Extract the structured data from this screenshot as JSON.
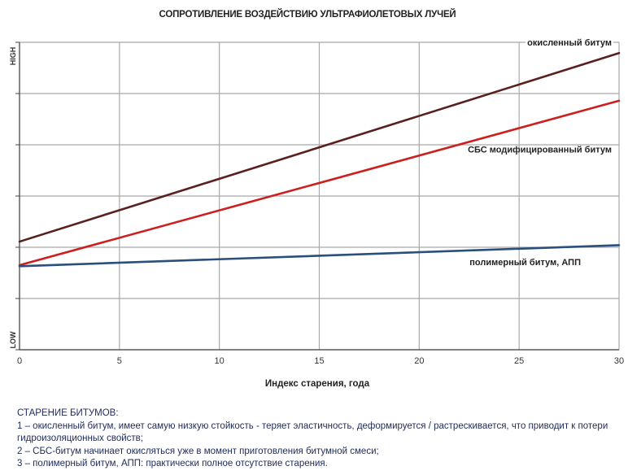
{
  "chart_data": {
    "type": "line",
    "title": "СОПРОТИВЛЕНИЕ ВОЗДЕЙСТВИЮ УЛЬТРАФИОЛЕТОВЫХ ЛУЧЕЙ",
    "xlabel": "Индекс старения, года",
    "ylabel": "",
    "y_high_label": "HIGH",
    "y_low_label": "LOW",
    "xlim": [
      0,
      30
    ],
    "ylim": [
      0,
      6
    ],
    "xticks": [
      0,
      5,
      10,
      15,
      20,
      25,
      30
    ],
    "grid": true,
    "series": [
      {
        "name": "окисленный битум",
        "x": [
          0,
          30
        ],
        "y": [
          2.11,
          5.79
        ],
        "color": "#5a2020"
      },
      {
        "name": "СБС модифицированный битум",
        "x": [
          0,
          30
        ],
        "y": [
          1.65,
          4.86
        ],
        "color": "#cc2020"
      },
      {
        "name": "полимерный битум, АПП",
        "x": [
          0,
          30
        ],
        "y": [
          1.63,
          2.04
        ],
        "color": "#2a4f7a"
      }
    ]
  },
  "notes": {
    "heading": "СТАРЕНИЕ БИТУМОВ:",
    "lines": [
      "1 – окисленный битум, имеет самую низкую стойкость - теряет эластичность, деформируется / растрескивается, что приводит к потери гидроизоляционных свойств;",
      "2 – СБС-битум начинает окисляться уже в момент приготовления битумной смеси;",
      "3 – полимерный битум, АПП: практически полное отсутствие старения."
    ]
  }
}
